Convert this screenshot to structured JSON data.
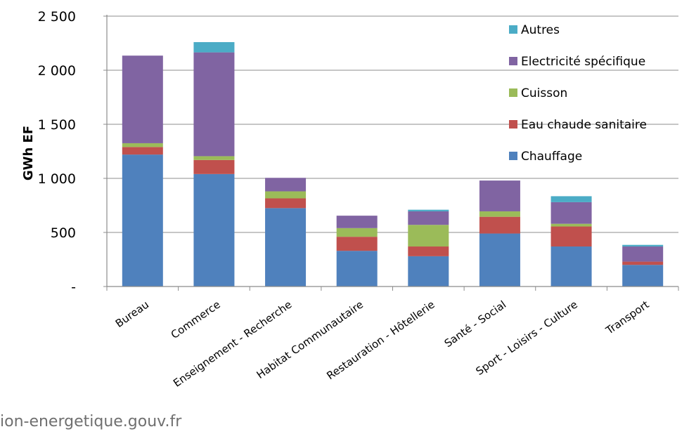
{
  "chart_data": {
    "type": "bar",
    "stacked": true,
    "title": "",
    "xlabel": "",
    "ylabel": "GWh EF",
    "ylim": [
      0,
      2500
    ],
    "yticks": [
      {
        "value": 0,
        "label": "-"
      },
      {
        "value": 500,
        "label": "500"
      },
      {
        "value": 1000,
        "label": "1 000"
      },
      {
        "value": 1500,
        "label": "1 500"
      },
      {
        "value": 2000,
        "label": "2 000"
      },
      {
        "value": 2500,
        "label": "2 500"
      }
    ],
    "grid": true,
    "legend_position": "top-right",
    "categories": [
      "Bureau",
      "Commerce",
      "Enseignement - Recherche",
      "Habitat Communautaire",
      "Restauration - Hôtellerie",
      "Santé - Social",
      "Sport - Loisirs - Culture",
      "Transport"
    ],
    "series": [
      {
        "name": "Chauffage",
        "color": "#4F81BD",
        "values": [
          1220,
          1040,
          725,
          330,
          280,
          490,
          370,
          200
        ]
      },
      {
        "name": "Eau chaude sanitaire",
        "color": "#C0504D",
        "values": [
          70,
          130,
          90,
          130,
          90,
          155,
          185,
          30
        ]
      },
      {
        "name": "Cuisson",
        "color": "#9BBB59",
        "values": [
          35,
          35,
          65,
          80,
          200,
          50,
          25,
          0
        ]
      },
      {
        "name": "Electricité spécifique",
        "color": "#8064A2",
        "values": [
          810,
          960,
          125,
          115,
          125,
          285,
          200,
          140
        ]
      },
      {
        "name": "Autres",
        "color": "#4BACC6",
        "values": [
          0,
          95,
          0,
          0,
          15,
          0,
          55,
          15
        ]
      }
    ]
  },
  "source_text": "ion-energetique.gouv.fr"
}
